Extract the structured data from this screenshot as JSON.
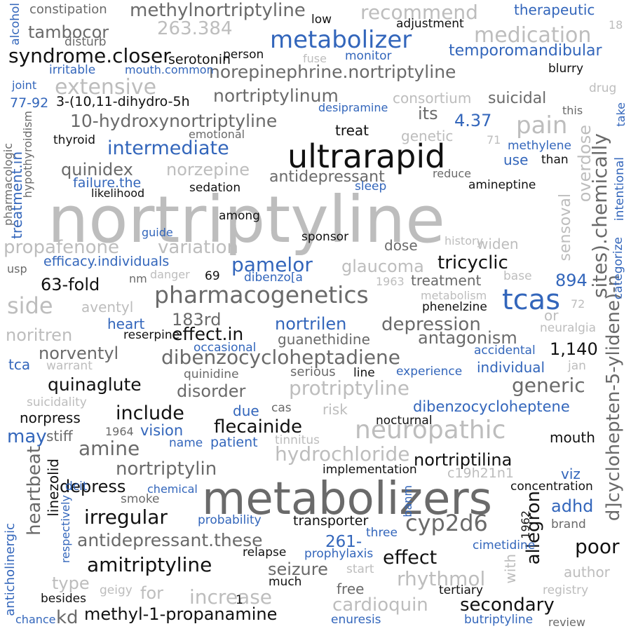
{
  "colors": {
    "black": "#111111",
    "dark": "#6a6a6a",
    "light": "#bdbdbd",
    "blue": "#3366bb"
  },
  "words": [
    {
      "t": "nortriptyline",
      "c": "light"
    },
    {
      "t": "metabolizers",
      "c": "dark"
    },
    {
      "t": "ultrarapid",
      "c": "black"
    },
    {
      "t": "pharmacogenetics",
      "c": "dark"
    },
    {
      "t": "dibenzocycloheptadiene",
      "c": "dark"
    },
    {
      "t": "metabolizer",
      "c": "blue"
    },
    {
      "t": "neuropathic",
      "c": "light"
    },
    {
      "t": "protriptyline",
      "c": "light"
    },
    {
      "t": "hydrochloride",
      "c": "light"
    },
    {
      "t": "cyp2d6",
      "c": "dark"
    },
    {
      "t": "amitriptyline",
      "c": "black"
    },
    {
      "t": "tcas",
      "c": "blue"
    },
    {
      "t": "pain",
      "c": "light"
    },
    {
      "t": "side",
      "c": "light"
    },
    {
      "t": "medication",
      "c": "light"
    },
    {
      "t": "recommend",
      "c": "light"
    },
    {
      "t": "extensive",
      "c": "light"
    },
    {
      "t": "methylnortriptyline",
      "c": "dark"
    },
    {
      "t": "norepinephrine.nortriptyline",
      "c": "dark"
    },
    {
      "t": "10-hydroxynortriptyline",
      "c": "dark"
    },
    {
      "t": "intermediate",
      "c": "blue"
    },
    {
      "t": "syndrome.closer",
      "c": "black"
    },
    {
      "t": "tambocor",
      "c": "dark"
    },
    {
      "t": "263.384",
      "c": "light"
    },
    {
      "t": "nortriptylinum",
      "c": "dark"
    },
    {
      "t": "temporomandibular",
      "c": "blue"
    },
    {
      "t": "therapeutic",
      "c": "blue"
    },
    {
      "t": "constipation",
      "c": "dark"
    },
    {
      "t": "quinidex",
      "c": "dark"
    },
    {
      "t": "norzepine",
      "c": "light"
    },
    {
      "t": "antidepressant",
      "c": "dark"
    },
    {
      "t": "propafenone",
      "c": "light"
    },
    {
      "t": "variation",
      "c": "light"
    },
    {
      "t": "pamelor",
      "c": "blue"
    },
    {
      "t": "glaucoma",
      "c": "light"
    },
    {
      "t": "tricyclic",
      "c": "black"
    },
    {
      "t": "efficacy.individuals",
      "c": "blue"
    },
    {
      "t": "63-fold",
      "c": "black"
    },
    {
      "t": "183rd",
      "c": "dark"
    },
    {
      "t": "effect.in",
      "c": "black"
    },
    {
      "t": "nortrilen",
      "c": "blue"
    },
    {
      "t": "depression",
      "c": "dark"
    },
    {
      "t": "antagonism",
      "c": "dark"
    },
    {
      "t": "1,140",
      "c": "black"
    },
    {
      "t": "894",
      "c": "blue"
    },
    {
      "t": "noritren",
      "c": "light"
    },
    {
      "t": "norventyl",
      "c": "dark"
    },
    {
      "t": "quinaglute",
      "c": "black"
    },
    {
      "t": "disorder",
      "c": "dark"
    },
    {
      "t": "include",
      "c": "black"
    },
    {
      "t": "flecainide",
      "c": "black"
    },
    {
      "t": "generic",
      "c": "dark"
    },
    {
      "t": "dibenzocycloheptene",
      "c": "blue"
    },
    {
      "t": "amine",
      "c": "dark"
    },
    {
      "t": "may",
      "c": "blue"
    },
    {
      "t": "nortriptylin",
      "c": "dark"
    },
    {
      "t": "nortriptilina",
      "c": "black"
    },
    {
      "t": "depress",
      "c": "black"
    },
    {
      "t": "irregular",
      "c": "black"
    },
    {
      "t": "antidepressant.these",
      "c": "dark"
    },
    {
      "t": "seizure",
      "c": "dark"
    },
    {
      "t": "effect",
      "c": "black"
    },
    {
      "t": "rhythmol",
      "c": "light"
    },
    {
      "t": "poor",
      "c": "black"
    },
    {
      "t": "increase",
      "c": "light"
    },
    {
      "t": "cardioquin",
      "c": "light"
    },
    {
      "t": "secondary",
      "c": "black"
    },
    {
      "t": "methyl-1-propanamine",
      "c": "black"
    },
    {
      "t": "adhd",
      "c": "blue"
    },
    {
      "t": "allegron",
      "c": "black"
    },
    {
      "t": "heartbeat",
      "c": "dark"
    },
    {
      "t": "linezolid",
      "c": "black"
    },
    {
      "t": "sites).chemically",
      "c": "dark"
    },
    {
      "t": "overdose",
      "c": "light"
    },
    {
      "t": "sensoval",
      "c": "light"
    },
    {
      "t": "d]cyclohepten-5-ylidene)-n",
      "c": "dark"
    },
    {
      "t": "its",
      "c": "dark"
    },
    {
      "t": "4.37",
      "c": "blue"
    },
    {
      "t": "suicidal",
      "c": "dark"
    },
    {
      "t": "treat",
      "c": "black"
    },
    {
      "t": "genetic",
      "c": "light"
    },
    {
      "t": "use",
      "c": "blue"
    },
    {
      "t": "than",
      "c": "black"
    },
    {
      "t": "methylene",
      "c": "blue"
    },
    {
      "t": "treatment",
      "c": "dark"
    },
    {
      "t": "dose",
      "c": "dark"
    },
    {
      "t": "widen",
      "c": "light"
    },
    {
      "t": "serotonin",
      "c": "black"
    },
    {
      "t": "person",
      "c": "black"
    },
    {
      "t": "monitor",
      "c": "blue"
    },
    {
      "t": "blurry",
      "c": "black"
    },
    {
      "t": "consortium",
      "c": "light"
    },
    {
      "t": "desipramine",
      "c": "blue"
    },
    {
      "t": "aventyl",
      "c": "light"
    },
    {
      "t": "heart",
      "c": "blue"
    },
    {
      "t": "reserpine",
      "c": "black"
    },
    {
      "t": "guanethidine",
      "c": "dark"
    },
    {
      "t": "occasional",
      "c": "blue"
    },
    {
      "t": "accidental",
      "c": "blue"
    },
    {
      "t": "individual",
      "c": "blue"
    },
    {
      "t": "tca",
      "c": "blue"
    },
    {
      "t": "warrant",
      "c": "light"
    },
    {
      "t": "quinidine",
      "c": "dark"
    },
    {
      "t": "serious",
      "c": "dark"
    },
    {
      "t": "line",
      "c": "black"
    },
    {
      "t": "experience",
      "c": "blue"
    },
    {
      "t": "jan",
      "c": "light"
    },
    {
      "t": "suicidality",
      "c": "light"
    },
    {
      "t": "norpress",
      "c": "black"
    },
    {
      "t": "due",
      "c": "blue"
    },
    {
      "t": "cas",
      "c": "dark"
    },
    {
      "t": "risk",
      "c": "light"
    },
    {
      "t": "nocturnal",
      "c": "black"
    },
    {
      "t": "stiff",
      "c": "dark"
    },
    {
      "t": "1964",
      "c": "dark"
    },
    {
      "t": "vision",
      "c": "blue"
    },
    {
      "t": "name",
      "c": "blue"
    },
    {
      "t": "patient",
      "c": "blue"
    },
    {
      "t": "tinnitus",
      "c": "light"
    },
    {
      "t": "mouth",
      "c": "black"
    },
    {
      "t": "implementation",
      "c": "black"
    },
    {
      "t": "c19h21n1",
      "c": "light"
    },
    {
      "t": "viz",
      "c": "blue"
    },
    {
      "t": "concentration",
      "c": "black"
    },
    {
      "t": "dcit",
      "c": "blue"
    },
    {
      "t": "chemical",
      "c": "blue"
    },
    {
      "t": "smoke",
      "c": "dark"
    },
    {
      "t": "probability",
      "c": "blue"
    },
    {
      "t": "transporter",
      "c": "black"
    },
    {
      "t": "banm",
      "c": "blue"
    },
    {
      "t": "1962",
      "c": "black"
    },
    {
      "t": "brand",
      "c": "dark"
    },
    {
      "t": "three",
      "c": "blue"
    },
    {
      "t": "261-",
      "c": "blue"
    },
    {
      "t": "cimetidine",
      "c": "blue"
    },
    {
      "t": "relapse",
      "c": "black"
    },
    {
      "t": "prophylaxis",
      "c": "blue"
    },
    {
      "t": "start",
      "c": "light"
    },
    {
      "t": "author",
      "c": "light"
    },
    {
      "t": "type",
      "c": "light"
    },
    {
      "t": "for",
      "c": "light"
    },
    {
      "t": "geigy",
      "c": "light"
    },
    {
      "t": "much",
      "c": "black"
    },
    {
      "t": "free",
      "c": "dark"
    },
    {
      "t": "tertiary",
      "c": "black"
    },
    {
      "t": "registry",
      "c": "light"
    },
    {
      "t": "with",
      "c": "light"
    },
    {
      "t": "besides",
      "c": "black"
    },
    {
      "t": "1",
      "c": "black"
    },
    {
      "t": "chance",
      "c": "blue"
    },
    {
      "t": "kd",
      "c": "dark"
    },
    {
      "t": "enuresis",
      "c": "blue"
    },
    {
      "t": "butriptyline",
      "c": "blue"
    },
    {
      "t": "review",
      "c": "dark"
    },
    {
      "t": "anticholinergic",
      "c": "blue"
    },
    {
      "t": "respectively",
      "c": "blue"
    },
    {
      "t": "alcohol",
      "c": "blue"
    },
    {
      "t": "disturb",
      "c": "dark"
    },
    {
      "t": "low",
      "c": "black"
    },
    {
      "t": "adjustment",
      "c": "black"
    },
    {
      "t": "18",
      "c": "light"
    },
    {
      "t": "fuse",
      "c": "light"
    },
    {
      "t": "irritable",
      "c": "blue"
    },
    {
      "t": "mouth.common",
      "c": "blue"
    },
    {
      "t": "joint",
      "c": "blue"
    },
    {
      "t": "77-92",
      "c": "blue"
    },
    {
      "t": "3-(10,11-dihydro-5h",
      "c": "black"
    },
    {
      "t": "drug",
      "c": "light"
    },
    {
      "t": "this",
      "c": "dark"
    },
    {
      "t": "take",
      "c": "blue"
    },
    {
      "t": "emotional",
      "c": "dark"
    },
    {
      "t": "thyroid",
      "c": "black"
    },
    {
      "t": "71",
      "c": "light"
    },
    {
      "t": "hypothyroidism",
      "c": "dark"
    },
    {
      "t": "treatment.in",
      "c": "blue"
    },
    {
      "t": "pharmacologic",
      "c": "dark"
    },
    {
      "t": "failure.the",
      "c": "blue"
    },
    {
      "t": "likelihood",
      "c": "black"
    },
    {
      "t": "sedation",
      "c": "black"
    },
    {
      "t": "sleep",
      "c": "blue"
    },
    {
      "t": "reduce",
      "c": "dark"
    },
    {
      "t": "amineptine",
      "c": "black"
    },
    {
      "t": "intentional",
      "c": "blue"
    },
    {
      "t": "categorize",
      "c": "blue"
    },
    {
      "t": "among",
      "c": "black"
    },
    {
      "t": "guide",
      "c": "blue"
    },
    {
      "t": "sponsor",
      "c": "black"
    },
    {
      "t": "history",
      "c": "light"
    },
    {
      "t": "usp",
      "c": "dark"
    },
    {
      "t": "nm",
      "c": "dark"
    },
    {
      "t": "danger",
      "c": "light"
    },
    {
      "t": "69",
      "c": "black"
    },
    {
      "t": "dibenzo[a",
      "c": "blue"
    },
    {
      "t": "1963",
      "c": "light"
    },
    {
      "t": "base",
      "c": "light"
    },
    {
      "t": "metabolism",
      "c": "light"
    },
    {
      "t": "phenelzine",
      "c": "black"
    },
    {
      "t": "72",
      "c": "light"
    },
    {
      "t": "categorize2",
      "c": "blue"
    },
    {
      "t": "or",
      "c": "light"
    },
    {
      "t": "neuralgia",
      "c": "light"
    }
  ]
}
